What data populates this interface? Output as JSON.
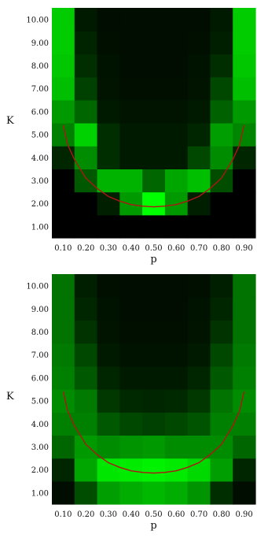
{
  "chart_data": [
    {
      "type": "heatmap",
      "xlabel": "p",
      "ylabel": "K",
      "x_ticks": [
        "0.10",
        "0.20",
        "0.30",
        "0.40",
        "0.50",
        "0.60",
        "0.70",
        "0.80",
        "0.90"
      ],
      "y_ticks": [
        "1.00",
        "2.00",
        "3.00",
        "4.00",
        "5.00",
        "6.00",
        "7.00",
        "8.00",
        "9.00",
        "10.00"
      ],
      "xlim": [
        0.05,
        0.95
      ],
      "ylim": [
        0.5,
        10.5
      ],
      "colormap": [
        "#000000",
        "#00ff00"
      ],
      "grid": false,
      "values": [
        [
          0.0,
          0.0,
          0.0,
          0.0,
          0.0,
          0.0,
          0.0,
          0.0,
          0.0
        ],
        [
          0.0,
          0.0,
          0.12,
          0.6,
          1.0,
          0.6,
          0.12,
          0.0,
          0.0
        ],
        [
          0.0,
          0.35,
          0.7,
          0.7,
          0.4,
          0.65,
          0.75,
          0.3,
          0.0
        ],
        [
          0.15,
          0.55,
          0.18,
          0.1,
          0.1,
          0.1,
          0.28,
          0.55,
          0.15
        ],
        [
          0.5,
          0.82,
          0.18,
          0.1,
          0.1,
          0.1,
          0.15,
          0.62,
          0.52
        ],
        [
          0.6,
          0.4,
          0.1,
          0.08,
          0.08,
          0.08,
          0.1,
          0.38,
          0.6
        ],
        [
          0.75,
          0.25,
          0.08,
          0.06,
          0.06,
          0.06,
          0.08,
          0.28,
          0.75
        ],
        [
          0.78,
          0.18,
          0.07,
          0.05,
          0.05,
          0.05,
          0.07,
          0.18,
          0.78
        ],
        [
          0.8,
          0.14,
          0.06,
          0.05,
          0.05,
          0.05,
          0.06,
          0.12,
          0.8
        ],
        [
          0.8,
          0.1,
          0.05,
          0.05,
          0.05,
          0.05,
          0.05,
          0.1,
          0.8
        ]
      ],
      "curve": {
        "color": "#b01515",
        "p": [
          0.1,
          0.12,
          0.15,
          0.2,
          0.25,
          0.3,
          0.35,
          0.4,
          0.45,
          0.5,
          0.55,
          0.6,
          0.65,
          0.7,
          0.75,
          0.8,
          0.85,
          0.88,
          0.9
        ],
        "K": [
          5.4,
          4.55,
          3.9,
          3.1,
          2.65,
          2.3,
          2.1,
          1.95,
          1.88,
          1.85,
          1.88,
          1.95,
          2.1,
          2.3,
          2.65,
          3.1,
          3.9,
          4.55,
          5.4
        ]
      }
    },
    {
      "type": "heatmap",
      "xlabel": "p",
      "ylabel": "K",
      "x_ticks": [
        "0.10",
        "0.20",
        "0.30",
        "0.40",
        "0.50",
        "0.60",
        "0.70",
        "0.80",
        "0.90"
      ],
      "y_ticks": [
        "1.00",
        "2.00",
        "3.00",
        "4.00",
        "5.00",
        "6.00",
        "7.00",
        "8.00",
        "9.00",
        "10.00"
      ],
      "xlim": [
        0.05,
        0.95
      ],
      "ylim": [
        0.5,
        10.5
      ],
      "colormap": [
        "#000000",
        "#00ff00"
      ],
      "grid": false,
      "values": [
        [
          0.05,
          0.3,
          0.62,
          0.68,
          0.72,
          0.68,
          0.58,
          0.18,
          0.05
        ],
        [
          0.15,
          0.65,
          0.9,
          0.92,
          0.95,
          0.92,
          0.85,
          0.62,
          0.15
        ],
        [
          0.4,
          0.6,
          0.55,
          0.58,
          0.6,
          0.55,
          0.55,
          0.55,
          0.4
        ],
        [
          0.5,
          0.5,
          0.35,
          0.28,
          0.25,
          0.28,
          0.33,
          0.5,
          0.5
        ],
        [
          0.55,
          0.48,
          0.22,
          0.16,
          0.15,
          0.16,
          0.22,
          0.45,
          0.55
        ],
        [
          0.5,
          0.35,
          0.15,
          0.1,
          0.1,
          0.1,
          0.15,
          0.35,
          0.5
        ],
        [
          0.48,
          0.28,
          0.1,
          0.07,
          0.07,
          0.07,
          0.1,
          0.28,
          0.48
        ],
        [
          0.45,
          0.2,
          0.08,
          0.06,
          0.06,
          0.06,
          0.08,
          0.2,
          0.45
        ],
        [
          0.45,
          0.15,
          0.07,
          0.05,
          0.05,
          0.05,
          0.07,
          0.15,
          0.45
        ],
        [
          0.45,
          0.12,
          0.06,
          0.05,
          0.05,
          0.05,
          0.06,
          0.12,
          0.45
        ]
      ],
      "curve": {
        "color": "#b01515",
        "p": [
          0.1,
          0.12,
          0.15,
          0.2,
          0.25,
          0.3,
          0.35,
          0.4,
          0.45,
          0.5,
          0.55,
          0.6,
          0.65,
          0.7,
          0.75,
          0.8,
          0.85,
          0.88,
          0.9
        ],
        "K": [
          5.4,
          4.55,
          3.9,
          3.1,
          2.65,
          2.3,
          2.1,
          1.95,
          1.88,
          1.85,
          1.88,
          1.95,
          2.1,
          2.3,
          2.65,
          3.1,
          3.9,
          4.55,
          5.4
        ]
      }
    }
  ]
}
